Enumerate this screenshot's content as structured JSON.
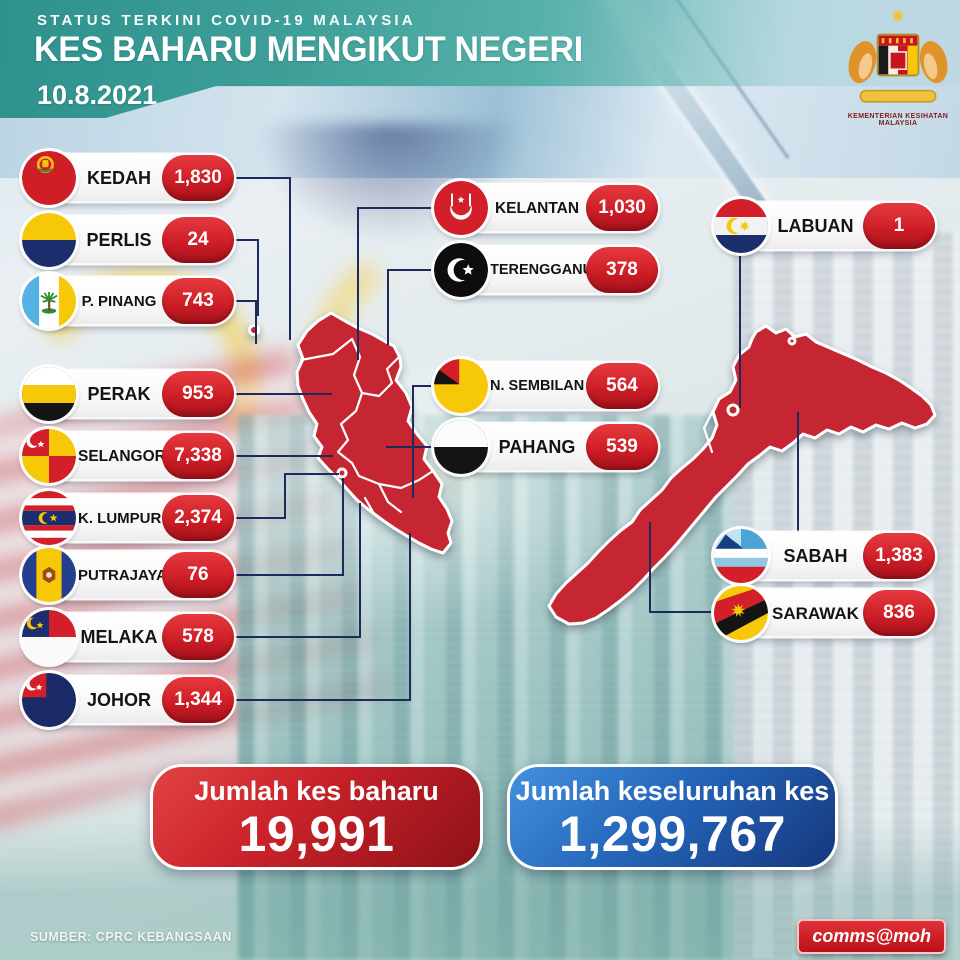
{
  "header": {
    "kicker": "STATUS TERKINI COVID-19 MALAYSIA",
    "title": "KES BAHARU MENGIKUT NEGERI",
    "date": "10.8.2021",
    "ministry": "KEMENTERIAN KESIHATAN MALAYSIA"
  },
  "states": [
    {
      "id": "kedah",
      "name": "KEDAH",
      "value": "1,830"
    },
    {
      "id": "perlis",
      "name": "PERLIS",
      "value": "24"
    },
    {
      "id": "ppinang",
      "name": "P. PINANG",
      "value": "743"
    },
    {
      "id": "perak",
      "name": "PERAK",
      "value": "953"
    },
    {
      "id": "selangor",
      "name": "SELANGOR",
      "value": "7,338"
    },
    {
      "id": "klumpur",
      "name": "K. LUMPUR",
      "value": "2,374"
    },
    {
      "id": "putrajaya",
      "name": "PUTRAJAYA",
      "value": "76"
    },
    {
      "id": "melaka",
      "name": "MELAKA",
      "value": "578"
    },
    {
      "id": "johor",
      "name": "JOHOR",
      "value": "1,344"
    },
    {
      "id": "kelantan",
      "name": "KELANTAN",
      "value": "1,030"
    },
    {
      "id": "terengganu",
      "name": "TERENGGANU",
      "value": "378"
    },
    {
      "id": "nsembilan",
      "name": "N. SEMBILAN",
      "value": "564"
    },
    {
      "id": "pahang",
      "name": "PAHANG",
      "value": "539"
    },
    {
      "id": "labuan",
      "name": "LABUAN",
      "value": "1"
    },
    {
      "id": "sabah",
      "name": "SABAH",
      "value": "1,383"
    },
    {
      "id": "sarawak",
      "name": "SARAWAK",
      "value": "836"
    }
  ],
  "totals": {
    "new_label": "Jumlah kes baharu",
    "new_value": "19,991",
    "cumulative_label": "Jumlah keseluruhan kes",
    "cumulative_value": "1,299,767"
  },
  "footer": {
    "source": "SUMBER: CPRC KEBANGSAAN",
    "credit": "comms@moh"
  },
  "colors": {
    "header_teal": "#3e9f99",
    "pill_red": "#cf1e27",
    "map_red": "#c62531",
    "connector_navy": "#1d2a5c",
    "total_red": "#cc232b",
    "total_blue": "#2566bb",
    "flag_yellow": "#f7c808"
  },
  "chart_data": {
    "type": "table",
    "title": "KES BAHARU MENGIKUT NEGERI",
    "date": "10.8.2021",
    "categories": [
      "KEDAH",
      "PERLIS",
      "P. PINANG",
      "PERAK",
      "SELANGOR",
      "K. LUMPUR",
      "PUTRAJAYA",
      "MELAKA",
      "JOHOR",
      "KELANTAN",
      "TERENGGANU",
      "N. SEMBILAN",
      "PAHANG",
      "LABUAN",
      "SABAH",
      "SARAWAK"
    ],
    "values": [
      1830,
      24,
      743,
      953,
      7338,
      2374,
      76,
      578,
      1344,
      1030,
      378,
      564,
      539,
      1,
      1383,
      836
    ],
    "totals": {
      "new_cases": 19991,
      "cumulative_cases": 1299767
    }
  }
}
